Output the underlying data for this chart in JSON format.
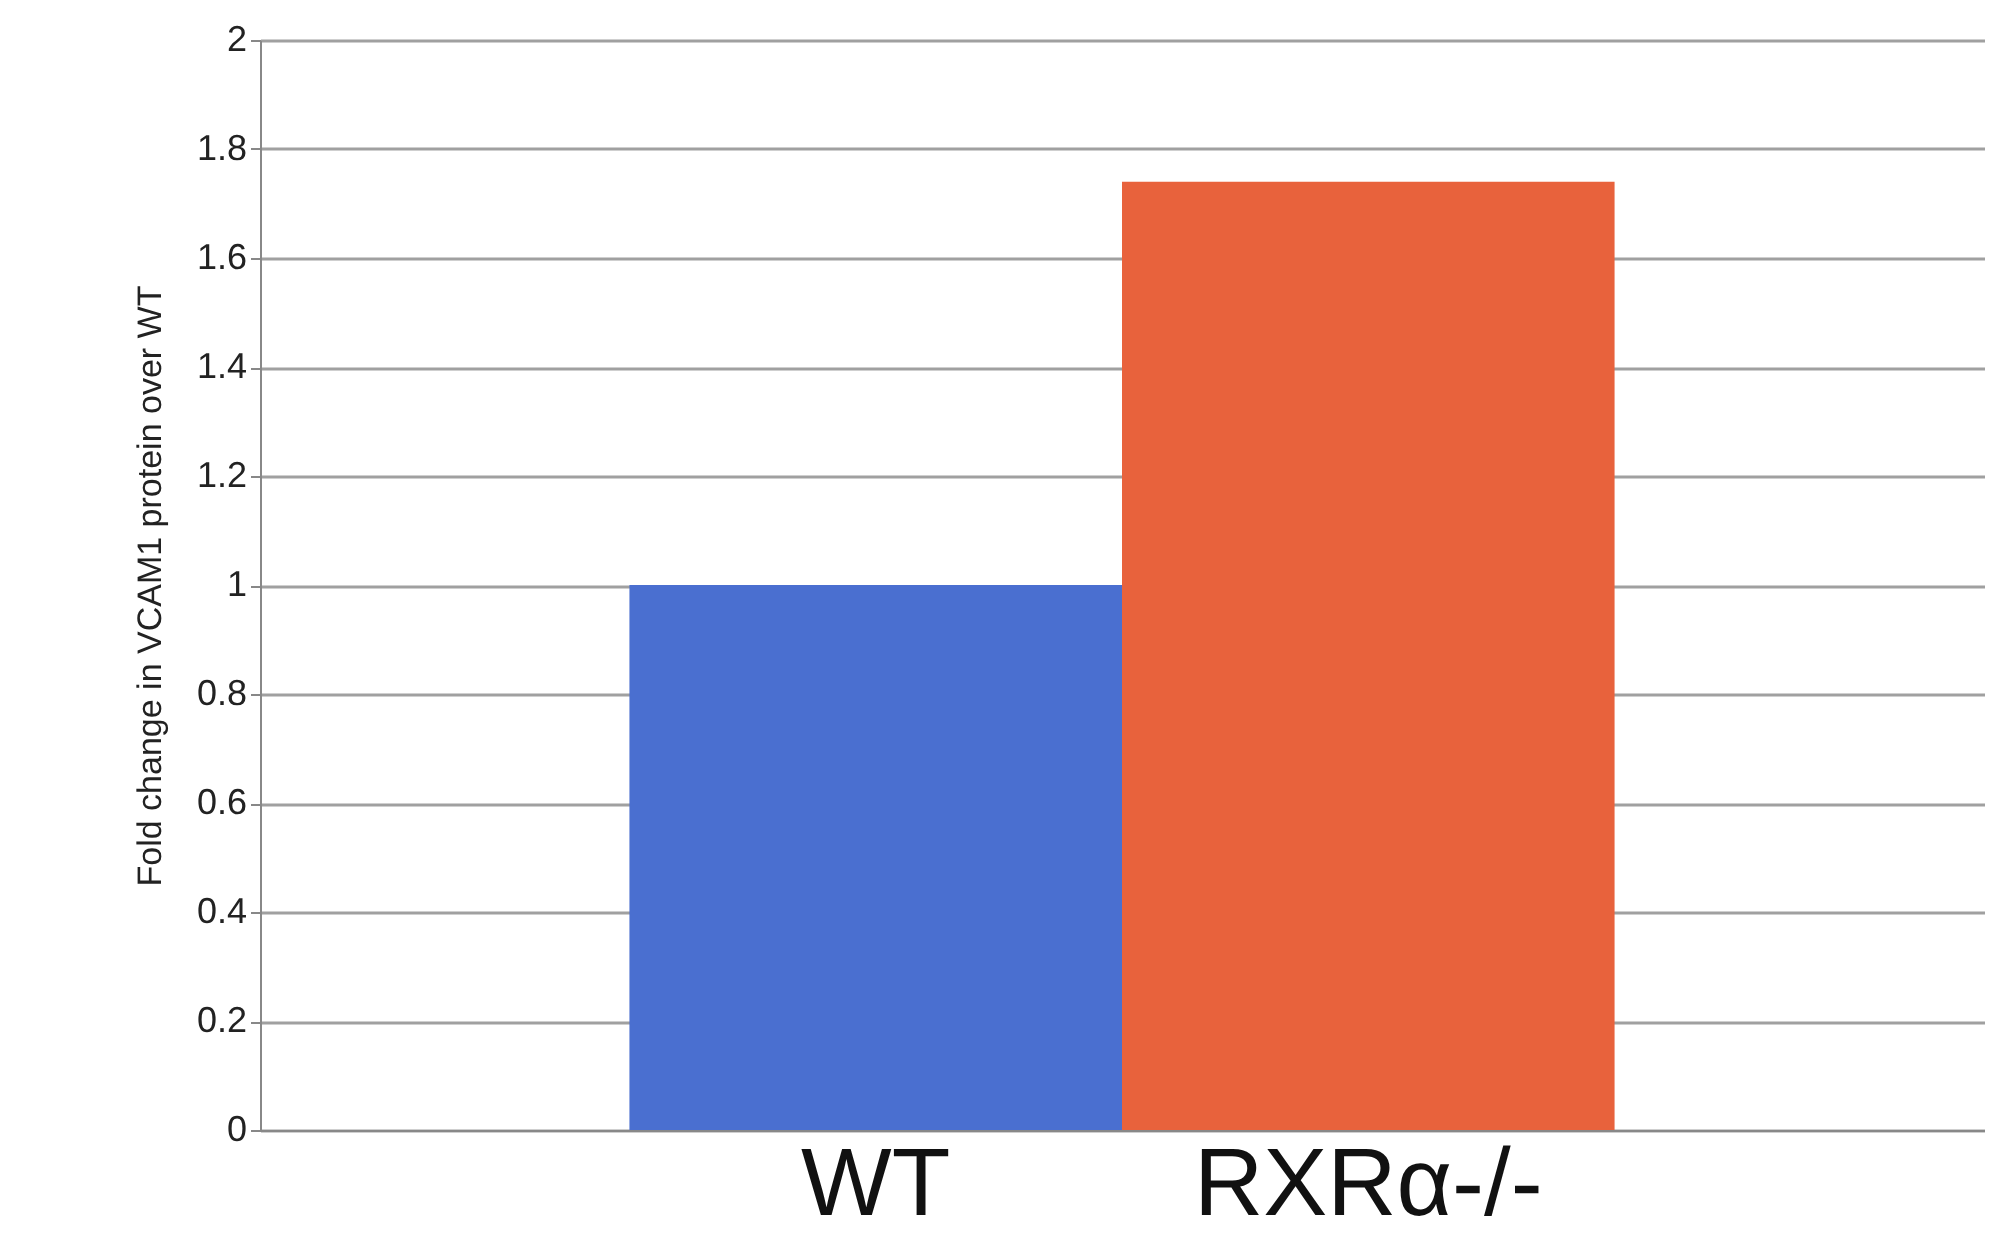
{
  "chart_data": {
    "type": "bar",
    "ylabel": "Fold change in VCAM1 protein over WT",
    "categories": [
      "WT",
      "RXRα-/-"
    ],
    "values": [
      1.0,
      1.74
    ],
    "colors": [
      "#4a6fd0",
      "#e8623c"
    ],
    "ylim": [
      0,
      2
    ],
    "yticks": [
      0,
      0.2,
      0.4,
      0.6,
      0.8,
      1,
      1.2,
      1.4,
      1.6,
      1.8,
      2
    ],
    "grid": "y"
  }
}
